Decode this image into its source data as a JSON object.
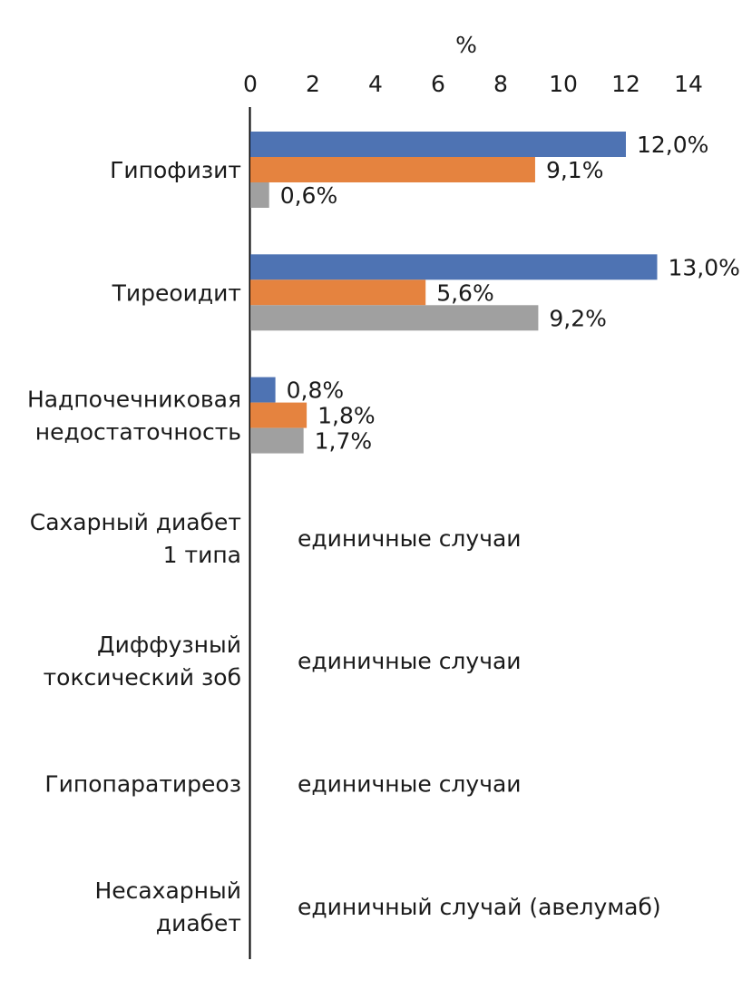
{
  "chart_data": {
    "type": "bar",
    "orientation": "horizontal",
    "axis_unit_label": "%",
    "xlim": [
      0,
      14
    ],
    "x_ticks": [
      "0",
      "2",
      "4",
      "6",
      "8",
      "10",
      "12",
      "14"
    ],
    "categories": [
      [
        "Гипофизит"
      ],
      [
        "Тиреоидит"
      ],
      [
        "Надпочечниковая",
        "недостаточность"
      ],
      [
        "Сахарный диабет",
        "1 типа"
      ],
      [
        "Диффузный",
        "токсический зоб"
      ],
      [
        "Гипопаратиреоз"
      ],
      [
        "Несахарный",
        "диабет"
      ]
    ],
    "series": [
      {
        "color": "#4e73b3",
        "values": [
          12.0,
          13.0,
          0.8,
          null,
          null,
          null,
          null
        ],
        "labels": [
          "12,0%",
          "13,0%",
          "0,8%",
          null,
          null,
          null,
          null
        ]
      },
      {
        "color": "#e5833f",
        "values": [
          9.1,
          5.6,
          1.8,
          null,
          null,
          null,
          null
        ],
        "labels": [
          "9,1%",
          "5,6%",
          "1,8%",
          null,
          null,
          null,
          null
        ]
      },
      {
        "color": "#a0a0a0",
        "values": [
          0.6,
          9.2,
          1.7,
          null,
          null,
          null,
          null
        ],
        "labels": [
          "0,6%",
          "9,2%",
          "1,7%",
          null,
          null,
          null,
          null
        ]
      }
    ],
    "annotations": [
      null,
      null,
      null,
      "единичные случаи",
      "единичные случаи",
      "единичные случаи",
      "единичный случай (авелумаб)"
    ],
    "legend": "none",
    "grid": false
  }
}
